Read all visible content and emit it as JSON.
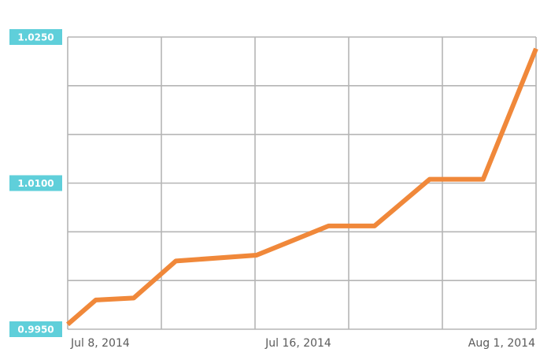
{
  "chart_data": {
    "type": "line",
    "title": "",
    "xlabel": "",
    "ylabel": "",
    "y_ticks": [
      0.995,
      1.01,
      1.025
    ],
    "y_tick_labels": [
      "0.9950",
      "1.0100",
      "1.0250"
    ],
    "ylim": [
      0.995,
      1.025
    ],
    "grid": true,
    "legend": "none",
    "x_tick_labels": [
      "Jul 8, 2014",
      "Jul 16, 2014",
      "Aug 1, 2014"
    ],
    "series": [
      {
        "color": "#f0883a",
        "x": [
          0.0,
          0.06,
          0.141,
          0.231,
          0.403,
          0.557,
          0.655,
          0.773,
          0.887,
          1.0
        ],
        "y": [
          0.9955,
          0.998,
          0.9982,
          1.002,
          1.0026,
          1.0056,
          1.0056,
          1.0104,
          1.0104,
          1.0238
        ]
      }
    ]
  },
  "colors": {
    "line": "#f0883a",
    "grid": "#b5b5b5",
    "tick_badge": "#5fcfda",
    "tick_badge_text": "#ffffff",
    "x_label_text": "#5a5a5a"
  }
}
